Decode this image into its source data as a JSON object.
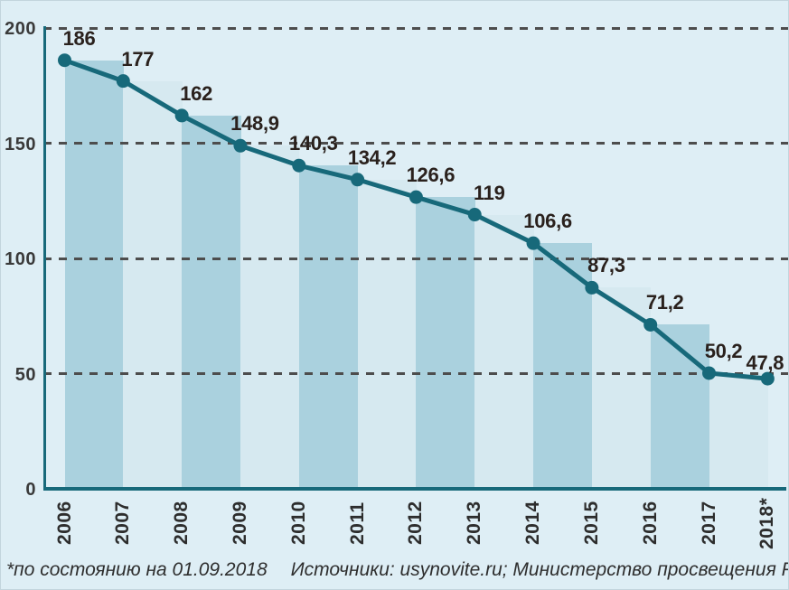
{
  "chart_data": {
    "type": "area",
    "subtype": "stepped-bands-with-line-markers",
    "categories": [
      "2006",
      "2007",
      "2008",
      "2009",
      "2010",
      "2011",
      "2012",
      "2013",
      "2014",
      "2015",
      "2016",
      "2017",
      "2018*"
    ],
    "values": [
      186,
      177,
      162,
      148.9,
      140.3,
      134.2,
      126.6,
      119,
      106.6,
      87.3,
      71.2,
      50.2,
      47.8
    ],
    "value_labels": [
      "186",
      "177",
      "162",
      "148,9",
      "140,3",
      "134,2",
      "126,6",
      "119",
      "106,6",
      "87,3",
      "71,2",
      "50,2",
      "47,8"
    ],
    "xlabel": "",
    "ylabel": "",
    "ylim": [
      0,
      200
    ],
    "yticks": [
      {
        "value": 200,
        "label": "200"
      },
      {
        "value": 150,
        "label": "150"
      },
      {
        "value": 100,
        "label": "100"
      },
      {
        "value": 50,
        "label": "50"
      },
      {
        "value": 0,
        "label": "0"
      }
    ],
    "grid": "horizontal-dashed",
    "legend": "none"
  },
  "footnote": {
    "note": "*по состоянию на 01.09.2018",
    "sources": "Источники: usynovite.ru; Министерство просвещения РФ"
  },
  "colors": {
    "background": "#deeef5",
    "band_dark": "#aad1de",
    "band_light": "#d6e9f0",
    "line": "#17697a",
    "marker": "#17697a",
    "value_label": "#2a211d",
    "axis_text": "#3a3a3a",
    "grid": "#4d4d4d",
    "footnote_text": "#2e2e2e"
  }
}
